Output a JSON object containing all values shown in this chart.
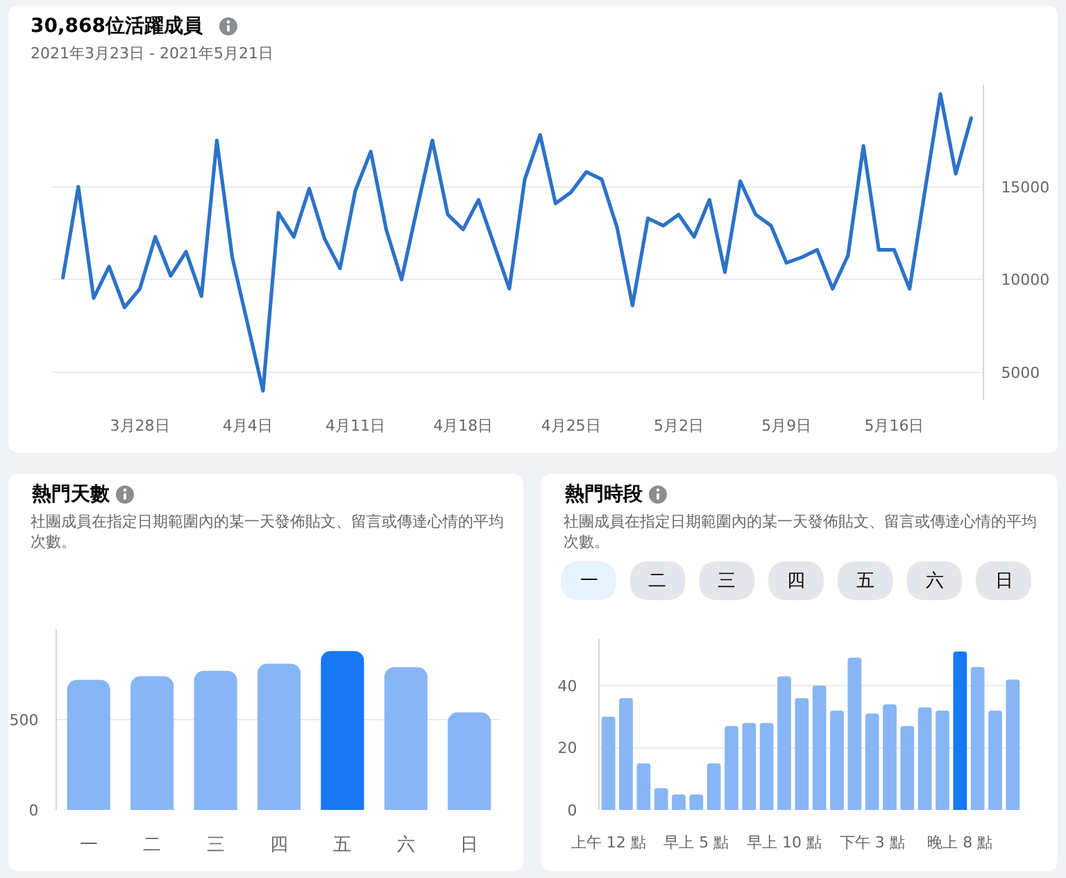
{
  "chart_data": [
    {
      "type": "line",
      "title": "30,868位活躍成員",
      "subtitle": "2021年3月23日 - 2021年5月21日",
      "x": [
        "2021-03-23",
        "2021-03-24",
        "2021-03-25",
        "2021-03-26",
        "2021-03-27",
        "2021-03-28",
        "2021-03-29",
        "2021-03-30",
        "2021-03-31",
        "2021-04-01",
        "2021-04-02",
        "2021-04-03",
        "2021-04-04",
        "2021-04-05",
        "2021-04-06",
        "2021-04-07",
        "2021-04-08",
        "2021-04-09",
        "2021-04-10",
        "2021-04-11",
        "2021-04-12",
        "2021-04-13",
        "2021-04-14",
        "2021-04-15",
        "2021-04-16",
        "2021-04-17",
        "2021-04-18",
        "2021-04-19",
        "2021-04-20",
        "2021-04-21",
        "2021-04-22",
        "2021-04-23",
        "2021-04-24",
        "2021-04-25",
        "2021-04-26",
        "2021-04-27",
        "2021-04-28",
        "2021-04-29",
        "2021-04-30",
        "2021-05-01",
        "2021-05-02",
        "2021-05-03",
        "2021-05-04",
        "2021-05-05",
        "2021-05-06",
        "2021-05-07",
        "2021-05-08",
        "2021-05-09",
        "2021-05-10",
        "2021-05-11",
        "2021-05-12",
        "2021-05-13",
        "2021-05-14",
        "2021-05-15",
        "2021-05-16",
        "2021-05-17",
        "2021-05-18",
        "2021-05-19",
        "2021-05-20",
        "2021-05-21"
      ],
      "series": [
        {
          "color": "#2d72c8",
          "values": [
            10100,
            15000,
            9000,
            10700,
            8500,
            9500,
            12300,
            10200,
            11500,
            9100,
            17500,
            11200,
            7600,
            4000,
            13600,
            12300,
            14900,
            12200,
            10600,
            14800,
            16900,
            12700,
            10000,
            13800,
            17500,
            13500,
            12700,
            14300,
            11900,
            9500,
            15400,
            17800,
            14100,
            14700,
            15800,
            15400,
            12800,
            8600,
            13300,
            12900,
            13500,
            12300,
            14300,
            10400,
            15300,
            13500,
            12900,
            10900,
            11200,
            11600,
            9500,
            11300,
            17200,
            11600,
            11600,
            9500,
            14800,
            20000,
            15700,
            18700
          ]
        }
      ],
      "xlim": [
        "2021-03-22T06:00",
        "2021-05-21T18:00"
      ],
      "xticks": [
        {
          "value": "2021-03-28",
          "label": "3月28日"
        },
        {
          "value": "2021-04-04",
          "label": "4月4日"
        },
        {
          "value": "2021-04-11",
          "label": "4月11日"
        },
        {
          "value": "2021-04-18",
          "label": "4月18日"
        },
        {
          "value": "2021-04-25",
          "label": "4月25日"
        },
        {
          "value": "2021-05-02",
          "label": "5月2日"
        },
        {
          "value": "2021-05-09",
          "label": "5月9日"
        },
        {
          "value": "2021-05-16",
          "label": "5月16日"
        }
      ],
      "ylim": [
        3500,
        20500
      ],
      "yticks": [
        5000,
        10000,
        15000
      ],
      "grid": "y"
    },
    {
      "type": "bar",
      "title": "熱門天數",
      "subtitle": "社團成員在指定日期範圍內的某一天發佈貼文、留言或傳達心情的平均次數。",
      "categories": [
        "一",
        "二",
        "三",
        "四",
        "五",
        "六",
        "日"
      ],
      "values": [
        720,
        740,
        770,
        810,
        880,
        790,
        540
      ],
      "colors": [
        "#88b6f5",
        "#88b6f5",
        "#88b6f5",
        "#88b6f5",
        "#1877f2",
        "#88b6f5",
        "#88b6f5"
      ],
      "ylim": [
        0,
        1000
      ],
      "yticks": [
        0,
        500
      ],
      "grid": "y"
    },
    {
      "type": "bar",
      "title": "熱門時段",
      "subtitle": "社團成員在指定日期範圍內的某一天發佈貼文、留言或傳達心情的平均次數。",
      "annotations": [
        "一",
        "二",
        "三",
        "四",
        "五",
        "六",
        "日"
      ],
      "categories": [
        "上午 12 點",
        null,
        null,
        null,
        null,
        "早上 5 點",
        null,
        null,
        null,
        null,
        "早上 10 點",
        null,
        null,
        null,
        null,
        "下午 3 點",
        null,
        null,
        null,
        null,
        "晚上 8 點",
        null,
        null,
        null
      ],
      "values": [
        30,
        36,
        15,
        7,
        5,
        5,
        15,
        27,
        28,
        28,
        43,
        36,
        40,
        32,
        49,
        31,
        34,
        27,
        33,
        32,
        51,
        46,
        32,
        42
      ],
      "colors": [
        "#88b6f5",
        "#88b6f5",
        "#88b6f5",
        "#88b6f5",
        "#88b6f5",
        "#88b6f5",
        "#88b6f5",
        "#88b6f5",
        "#88b6f5",
        "#88b6f5",
        "#88b6f5",
        "#88b6f5",
        "#88b6f5",
        "#88b6f5",
        "#88b6f5",
        "#88b6f5",
        "#88b6f5",
        "#88b6f5",
        "#88b6f5",
        "#88b6f5",
        "#1877f2",
        "#88b6f5",
        "#88b6f5",
        "#88b6f5"
      ],
      "ylim": [
        0,
        55
      ],
      "yticks": [
        0,
        20,
        40
      ],
      "grid": "y"
    }
  ]
}
